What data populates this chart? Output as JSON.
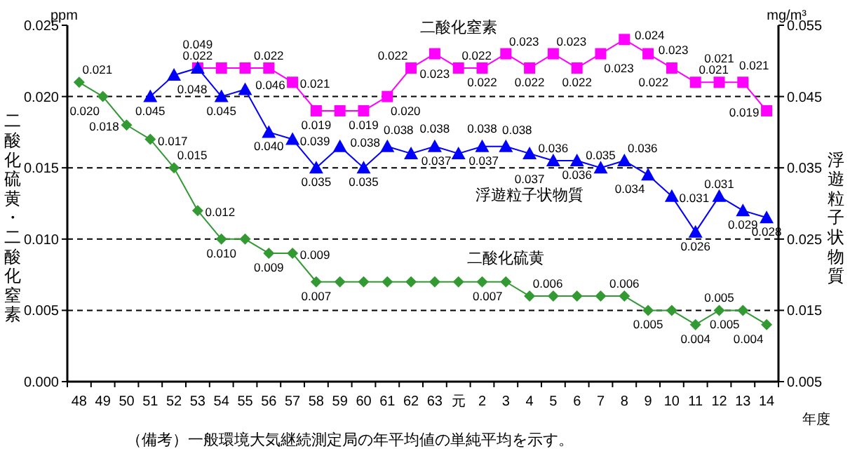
{
  "chart_data": {
    "type": "line",
    "categories": [
      "48",
      "49",
      "50",
      "51",
      "52",
      "53",
      "54",
      "55",
      "56",
      "57",
      "58",
      "59",
      "60",
      "61",
      "62",
      "63",
      "元",
      "2",
      "3",
      "4",
      "5",
      "6",
      "7",
      "8",
      "9",
      "10",
      "11",
      "12",
      "13",
      "14"
    ],
    "series": [
      {
        "name": "二酸化硫黄",
        "color": "#339933",
        "marker": "diamond",
        "value_labels": [
          "0.021",
          "0.020",
          "0.018",
          "0.017",
          "0.015",
          "0.012",
          "0.010",
          null,
          "0.009",
          "0.009",
          "0.007",
          null,
          null,
          null,
          null,
          null,
          null,
          null,
          "0.007",
          "0.006",
          null,
          null,
          null,
          "0.006",
          "0.005",
          null,
          "0.004",
          "0.005",
          "0.005",
          "0.004"
        ],
        "values": [
          0.021,
          0.02,
          0.018,
          0.017,
          0.015,
          0.012,
          0.01,
          0.01,
          0.009,
          0.009,
          0.007,
          0.007,
          0.007,
          0.007,
          0.007,
          0.007,
          0.007,
          0.007,
          0.007,
          0.006,
          0.006,
          0.006,
          0.006,
          0.006,
          0.005,
          0.005,
          0.004,
          0.005,
          0.005,
          0.004
        ]
      },
      {
        "name": "二酸化窒素",
        "color": "#ff00ff",
        "marker": "square",
        "value_labels": [
          null,
          null,
          null,
          null,
          null,
          "0.022",
          null,
          null,
          "0.022",
          "0.021",
          "0.019",
          null,
          "0.019",
          "0.020",
          "0.022",
          "0.023",
          "0.022",
          "0.022",
          "0.023",
          "0.022",
          "0.023",
          "0.022",
          "0.023",
          "0.024",
          "0.023",
          "0.022",
          "0.021",
          "0.021",
          "0.021",
          "0.019"
        ],
        "values": [
          null,
          null,
          null,
          null,
          null,
          0.022,
          0.022,
          0.022,
          0.022,
          0.021,
          0.019,
          0.019,
          0.019,
          0.02,
          0.022,
          0.023,
          0.022,
          0.022,
          0.023,
          0.022,
          0.023,
          0.022,
          0.023,
          0.024,
          0.023,
          0.022,
          0.021,
          0.021,
          0.021,
          0.019
        ]
      },
      {
        "name": "浮遊粒子状物質",
        "color": "#0000ff",
        "marker": "triangle",
        "axis": "y2",
        "value_labels": [
          null,
          null,
          null,
          "0.045",
          "0.048",
          "0.049",
          "0.045",
          "0.046",
          "0.040",
          "0.039",
          "0.035",
          "0.038",
          "0.035",
          "0.038",
          "0.037",
          "0.038",
          "0.037",
          "0.038",
          "0.038",
          "0.037",
          "0.036",
          "0.036",
          "0.035",
          "0.036",
          "0.034",
          "0.031",
          "0.026",
          "0.031",
          "0.029",
          "0.028"
        ],
        "values": [
          null,
          null,
          null,
          0.045,
          0.048,
          0.049,
          0.045,
          0.046,
          0.04,
          0.039,
          0.035,
          0.038,
          0.035,
          0.038,
          0.037,
          0.038,
          0.037,
          0.038,
          0.038,
          0.037,
          0.036,
          0.036,
          0.035,
          0.036,
          0.034,
          0.031,
          0.026,
          0.031,
          0.029,
          0.028
        ]
      }
    ],
    "ylim": [
      0,
      0.025
    ],
    "yticks": [
      {
        "value": 0,
        "label": "0.000"
      },
      {
        "value": 0.005,
        "label": "0.005"
      },
      {
        "value": 0.01,
        "label": "0.010"
      },
      {
        "value": 0.015,
        "label": "0.015"
      },
      {
        "value": 0.02,
        "label": "0.020"
      },
      {
        "value": 0.025,
        "label": "0.025"
      }
    ],
    "y2lim": [
      0.005,
      0.055
    ],
    "y2ticks": [
      {
        "value": 0.005,
        "label": "0.005"
      },
      {
        "value": 0.015,
        "label": "0.015"
      },
      {
        "value": 0.025,
        "label": "0.025"
      },
      {
        "value": 0.035,
        "label": "0.035"
      },
      {
        "value": 0.045,
        "label": "0.045"
      },
      {
        "value": 0.055,
        "label": "0.055"
      }
    ],
    "ylabel": "二酸化硫黄・二酸化窒素",
    "y2label": "浮遊粒子状物質",
    "xlabel": "年度",
    "annotations": [
      "ppm",
      "mg/m³",
      "（備考）一般環境大気継続測定局の年平均値の単純平均を示す。"
    ],
    "grid": "y",
    "legend": false,
    "line_style": "solid"
  }
}
